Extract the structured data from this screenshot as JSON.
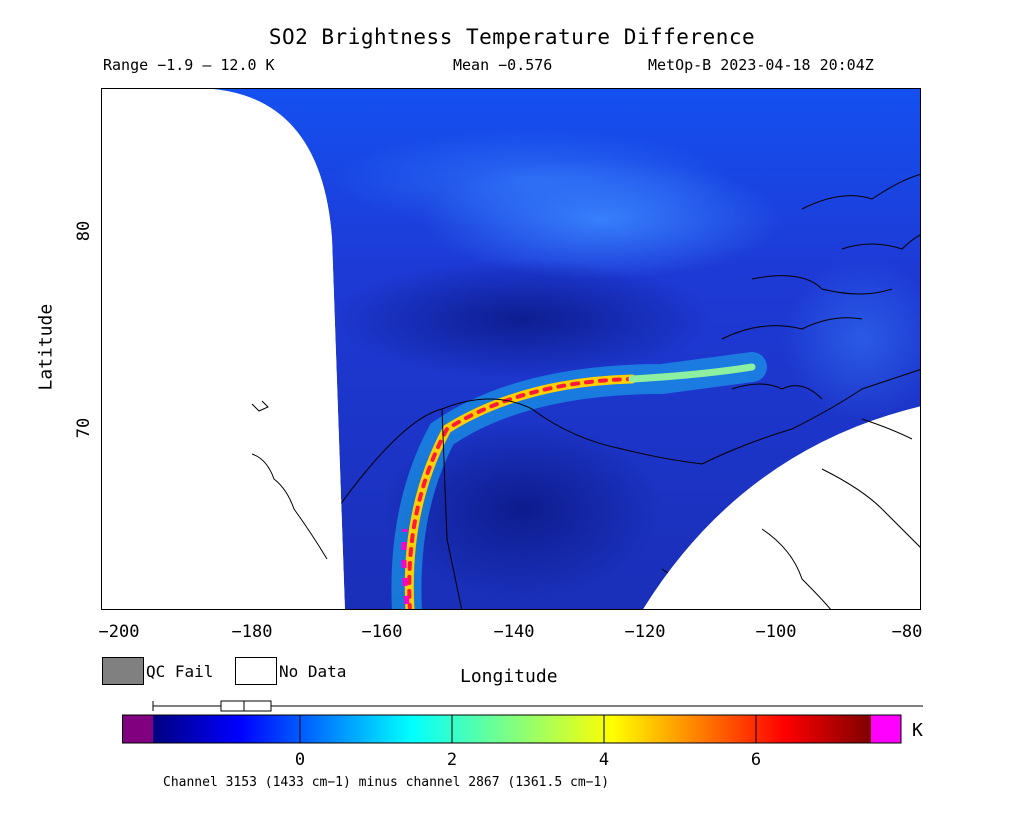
{
  "title": "SO2 Brightness Temperature Difference",
  "header": {
    "range": "Range −1.9 – 12.0 K",
    "mean": "Mean −0.576",
    "satellite": "MetOp-B 2023-04-18 20:04Z"
  },
  "axes": {
    "xlabel": "Longitude",
    "ylabel": "Latitude",
    "x_ticks": [
      "−200",
      "−180",
      "−160",
      "−140",
      "−120",
      "−100",
      "−80"
    ],
    "y_ticks": [
      "70",
      "80"
    ]
  },
  "legend": {
    "qc_fail": "QC Fail",
    "no_data": "No Data",
    "qc_fail_color": "#808080",
    "no_data_color": "#ffffff"
  },
  "colorbar": {
    "unit": "K",
    "tick_labels": [
      "0",
      "2",
      "4",
      "6"
    ],
    "under_color": "#800080",
    "over_color": "#ff00ff"
  },
  "caption": "Channel 3153 (1433 cm−1) minus channel 2867 (1361.5 cm−1)",
  "map": {
    "x_range": [
      -202,
      -80
    ],
    "y_range": [
      61,
      87
    ],
    "background_color": "#1e3ad6",
    "plume_color_peak": "#ff0000"
  }
}
